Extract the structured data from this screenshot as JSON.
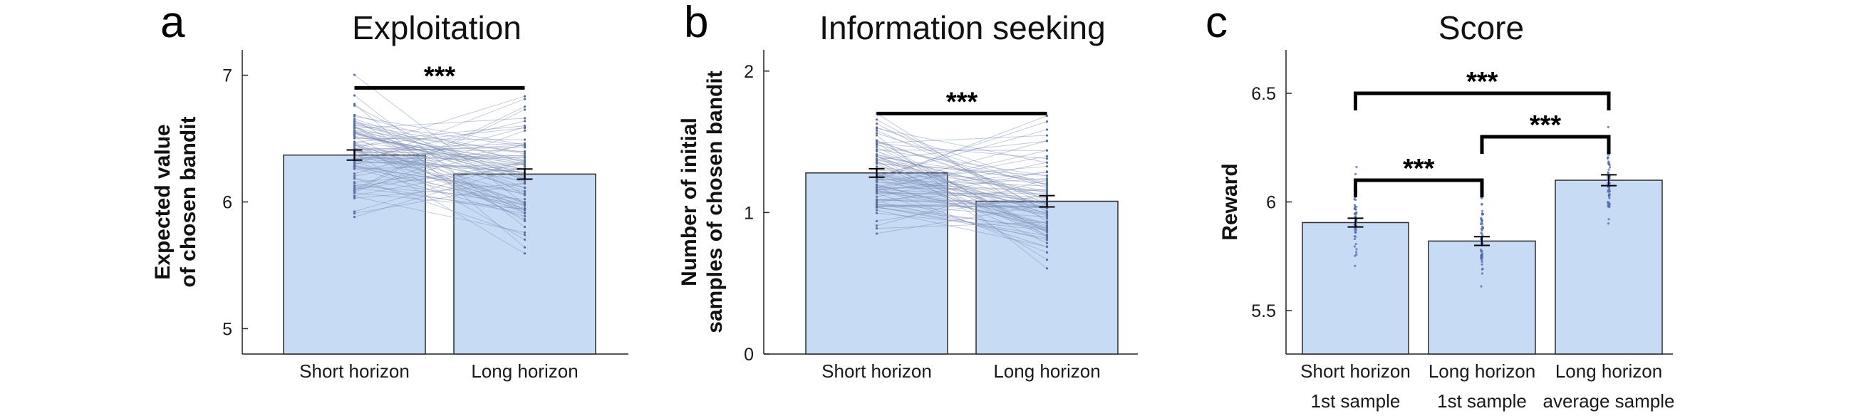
{
  "chart_data": [
    {
      "type": "bar",
      "panel_letter": "a",
      "title": "Exploitation",
      "ylabel_lines": [
        "Expected value",
        "of chosen bandit"
      ],
      "categories": [
        [
          "Short horizon"
        ],
        [
          "Long horizon"
        ]
      ],
      "values": [
        6.37,
        6.22
      ],
      "errors": [
        0.04,
        0.04
      ],
      "ylim": [
        4.8,
        7.2
      ],
      "yticks": [
        5,
        6,
        7
      ],
      "ytick_labels": [
        "5",
        "6",
        "7"
      ],
      "bar_color": "#c8dbf5",
      "paired_lines": true,
      "significance": [
        {
          "from": 0,
          "to": 1,
          "y": 6.9,
          "label": "***"
        }
      ]
    },
    {
      "type": "bar",
      "panel_letter": "b",
      "title": "Information seeking",
      "ylabel_lines": [
        "Number of initial",
        "samples of chosen bandit"
      ],
      "categories": [
        [
          "Short horizon"
        ],
        [
          "Long horizon"
        ]
      ],
      "values": [
        1.28,
        1.08
      ],
      "errors": [
        0.03,
        0.04
      ],
      "ylim": [
        0,
        2.15
      ],
      "yticks": [
        0,
        1,
        2
      ],
      "ytick_labels": [
        "0",
        "1",
        "2"
      ],
      "bar_color": "#c8dbf5",
      "paired_lines": true,
      "significance": [
        {
          "from": 0,
          "to": 1,
          "y": 1.7,
          "label": "***"
        }
      ]
    },
    {
      "type": "bar",
      "panel_letter": "c",
      "title": "Score",
      "ylabel_lines": [
        "Reward"
      ],
      "categories": [
        [
          "Short horizon",
          "1st sample"
        ],
        [
          "Long horizon",
          "1st sample"
        ],
        [
          "Long horizon",
          "average sample"
        ]
      ],
      "values": [
        5.905,
        5.82,
        6.1
      ],
      "errors": [
        0.02,
        0.02,
        0.025
      ],
      "ylim": [
        5.3,
        6.7
      ],
      "yticks": [
        5.5,
        6,
        6.5
      ],
      "ytick_labels": [
        "5.5",
        "6",
        "6.5"
      ],
      "bar_color": "#c8dbf5",
      "paired_lines": false,
      "significance": [
        {
          "from": 0,
          "to": 2,
          "y": 6.5,
          "label": "***"
        },
        {
          "from": 1,
          "to": 2,
          "y": 6.3,
          "label": "***"
        },
        {
          "from": 0,
          "to": 1,
          "y": 6.1,
          "label": "***"
        }
      ]
    }
  ]
}
